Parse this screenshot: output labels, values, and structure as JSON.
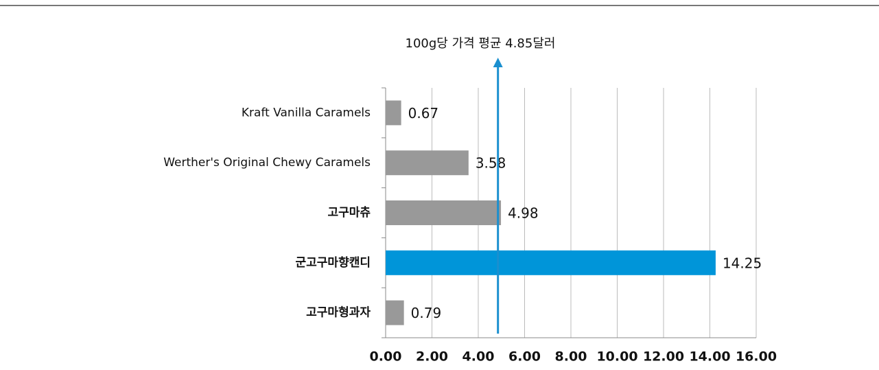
{
  "chart_data": {
    "type": "bar",
    "orientation": "horizontal",
    "annotation": "100g당 가격 평균 4.85달러",
    "reference_value": 4.85,
    "reference_color": "#1a8fcf",
    "categories": [
      "Kraft Vanilla Caramels",
      "Werther's Original Chewy Caramels",
      "고구마츄",
      "군고구마향캔디",
      "고구마형과자"
    ],
    "values": [
      0.67,
      3.58,
      4.98,
      14.25,
      0.79
    ],
    "colors": [
      "#999999",
      "#999999",
      "#999999",
      "#0095d9",
      "#999999"
    ],
    "xlim": [
      0,
      16
    ],
    "xticks": [
      {
        "value": 0,
        "label": "0.00"
      },
      {
        "value": 2,
        "label": "2.00"
      },
      {
        "value": 4,
        "label": "4.00"
      },
      {
        "value": 6,
        "label": "6.00"
      },
      {
        "value": 8,
        "label": "8.00"
      },
      {
        "value": 10,
        "label": "10.00"
      },
      {
        "value": 12,
        "label": "12.00"
      },
      {
        "value": 14,
        "label": "14.00"
      },
      {
        "value": 16,
        "label": "16.00"
      }
    ],
    "grid": true
  }
}
